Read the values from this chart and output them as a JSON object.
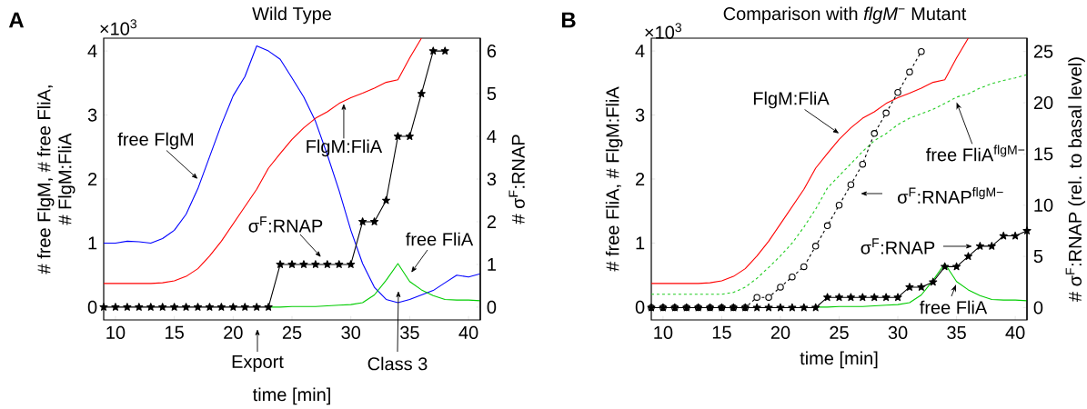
{
  "chart_data": [
    {
      "type": "line",
      "title": "Wild Type",
      "xlabel": "time [min]",
      "ylabel": "# free FlgM, # free FliA, # FlgM:FliA",
      "y2label": "# σ$^{F}$:RNAP",
      "x": [
        9,
        10,
        11,
        12,
        13,
        14,
        15,
        16,
        17,
        18,
        19,
        20,
        21,
        22,
        23,
        24,
        25,
        26,
        27,
        28,
        29,
        30,
        31,
        32,
        33,
        34,
        35,
        36,
        37,
        38,
        39,
        40,
        41
      ],
      "xlim": [
        9,
        41
      ],
      "ylim": [
        -0.2,
        4.2
      ],
      "y2lim": [
        -0.3,
        6.3
      ],
      "xticks": [
        10,
        15,
        20,
        25,
        30,
        35,
        40
      ],
      "yticks": [
        0,
        1,
        2,
        3,
        4
      ],
      "y2ticks": [
        0,
        1,
        2,
        3,
        4,
        5,
        6
      ],
      "grid": false,
      "marker": "none",
      "line_style": "solid",
      "series": [
        {
          "color": "#0000ff",
          "values": [
            1.0,
            1.0,
            1.03,
            1.02,
            1.0,
            1.07,
            1.2,
            1.45,
            1.85,
            2.35,
            2.85,
            3.3,
            3.6,
            4.08,
            4.0,
            3.87,
            3.58,
            3.28,
            2.9,
            2.38,
            1.82,
            1.2,
            0.68,
            0.31,
            0.12,
            0.07,
            0.12,
            0.19,
            0.26,
            0.38,
            0.5,
            0.47,
            0.52
          ]
        },
        {
          "color": "#ff0000",
          "values": [
            0.37,
            0.37,
            0.37,
            0.37,
            0.37,
            0.38,
            0.41,
            0.48,
            0.6,
            0.8,
            1.03,
            1.3,
            1.57,
            1.84,
            2.17,
            2.4,
            2.62,
            2.8,
            2.95,
            3.05,
            3.18,
            3.27,
            3.34,
            3.42,
            3.51,
            3.55,
            3.89,
            4.2,
            null,
            null,
            null,
            null,
            null
          ]
        },
        {
          "color": "#00cc00",
          "values": [
            null,
            null,
            null,
            null,
            null,
            null,
            null,
            null,
            null,
            null,
            null,
            null,
            null,
            null,
            0,
            0,
            0.01,
            0.01,
            0.01,
            0.02,
            0.03,
            0.04,
            0.07,
            0.19,
            0.42,
            0.68,
            0.4,
            0.27,
            0.18,
            0.12,
            0.11,
            0.11,
            0.1
          ]
        },
        {
          "color": "#000000",
          "axis": "y2",
          "marker": "star",
          "values": [
            0,
            0,
            0,
            0,
            0,
            0,
            0,
            0,
            0,
            0,
            0,
            0,
            0,
            0,
            0,
            1,
            1,
            1,
            1,
            1,
            1,
            1,
            2,
            2,
            2.5,
            4,
            4,
            5,
            6,
            6,
            null,
            null,
            null
          ]
        }
      ],
      "annotations": [
        "A",
        "×10$^{3}$",
        {
          "text": "free FlgM",
          "x": 17,
          "y": 2.0
        },
        {
          "text": "FlgM:FliA",
          "x": 29.4,
          "y": 3.18
        },
        "σ$^{F}$:RNAP",
        "free FliA",
        "Export",
        "Class 3"
      ]
    },
    {
      "type": "line",
      "title": "Comparison with *flgM*$^{−}$ Mutant",
      "xlabel": "time [min]",
      "ylabel": "# free FliA, # FlgM:FliA",
      "y2label": "# σ$^{F}$:RNAP (rel. to basal level)",
      "x": [
        9,
        10,
        11,
        12,
        13,
        14,
        15,
        16,
        17,
        18,
        19,
        20,
        21,
        22,
        23,
        24,
        25,
        26,
        27,
        28,
        29,
        30,
        31,
        32,
        33,
        34,
        35,
        36,
        37,
        38,
        39,
        40,
        41
      ],
      "xlim": [
        9,
        41
      ],
      "ylim": [
        -0.2,
        4.2
      ],
      "y2lim": [
        -1.2,
        26.3
      ],
      "xticks": [
        10,
        15,
        20,
        25,
        30,
        35,
        40
      ],
      "yticks": [
        0,
        1,
        2,
        3,
        4
      ],
      "y2ticks": [
        0,
        5,
        10,
        15,
        20,
        25
      ],
      "grid": false,
      "marker": "none",
      "line_style": "solid",
      "series": [
        {
          "color": "#ff0000",
          "values": [
            0.37,
            0.37,
            0.37,
            0.37,
            0.37,
            0.38,
            0.41,
            0.48,
            0.6,
            0.8,
            1.03,
            1.3,
            1.57,
            1.84,
            2.17,
            2.4,
            2.62,
            2.8,
            2.95,
            3.05,
            3.18,
            3.27,
            3.34,
            3.42,
            3.51,
            3.55,
            3.89,
            4.2,
            null,
            null,
            null,
            null,
            null
          ]
        },
        {
          "color": "#22cc22",
          "line_style": "dashed",
          "values": [
            0.2,
            0.2,
            0.2,
            0.2,
            0.2,
            0.2,
            0.2,
            0.23,
            0.31,
            0.45,
            0.62,
            0.8,
            1.0,
            1.25,
            1.53,
            1.86,
            2.05,
            2.24,
            2.43,
            2.6,
            2.71,
            2.85,
            2.95,
            3.02,
            3.09,
            3.18,
            3.28,
            3.33,
            3.42,
            3.49,
            3.54,
            3.58,
            3.63
          ]
        },
        {
          "color": "#00cc00",
          "values": [
            null,
            null,
            null,
            null,
            null,
            null,
            null,
            null,
            null,
            null,
            null,
            null,
            null,
            null,
            0,
            0,
            0.01,
            0.01,
            0.01,
            0.02,
            0.03,
            0.04,
            0.07,
            0.19,
            0.42,
            0.68,
            0.4,
            0.27,
            0.18,
            0.12,
            0.11,
            0.11,
            0.1
          ]
        },
        {
          "color": "#000000",
          "axis": "y2",
          "marker": "circle",
          "line_style": "dashed",
          "values": [
            0,
            0,
            0,
            0,
            0,
            0,
            0,
            0,
            0,
            1,
            1,
            2,
            3,
            4,
            6,
            8,
            10,
            12,
            14,
            17,
            19,
            21,
            23,
            25,
            null,
            null,
            null,
            null,
            null,
            null,
            null,
            null,
            null
          ]
        },
        {
          "color": "#000000",
          "axis": "y2",
          "marker": "star",
          "values": [
            0,
            0,
            0,
            0,
            0,
            0,
            0,
            0,
            0,
            0,
            0,
            0,
            0,
            0,
            0,
            1,
            1,
            1,
            1,
            1,
            1,
            1,
            2,
            2,
            2.5,
            4,
            4,
            5,
            6,
            6,
            7,
            7,
            7.5
          ]
        }
      ],
      "annotations": [
        "B",
        "×10$^{3}$",
        {
          "text": "FlgM:FliA",
          "x": 25.0,
          "y": 2.71
        },
        {
          "text": "free FliA$^{flgM−}$",
          "x": 35.0,
          "y": 3.2
        },
        "σ$^{F}$:RNAP$^{flgM−}$",
        "σ$^{F}$:RNAP",
        "free FliA"
      ]
    }
  ]
}
